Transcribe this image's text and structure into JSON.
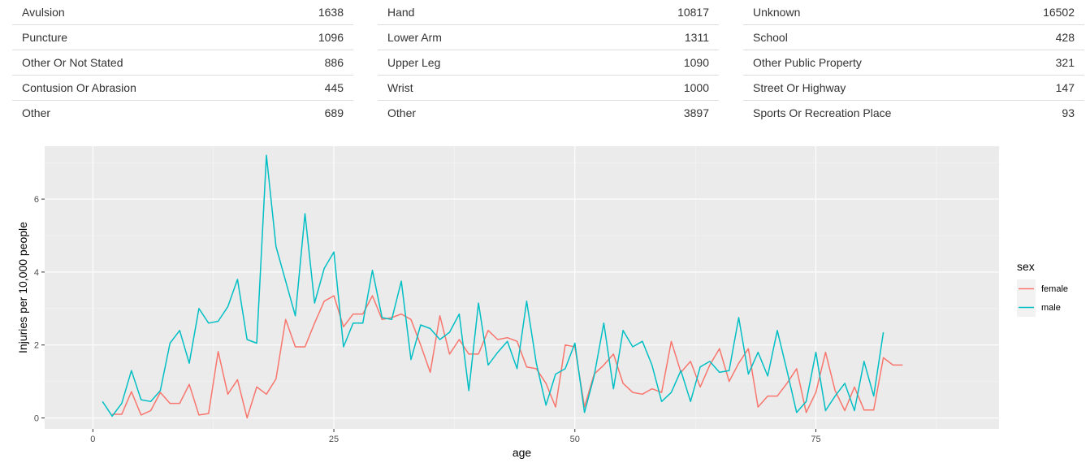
{
  "tables": [
    {
      "rows": [
        {
          "label": "Avulsion",
          "value": "1638"
        },
        {
          "label": "Puncture",
          "value": "1096"
        },
        {
          "label": "Other Or Not Stated",
          "value": "886"
        },
        {
          "label": "Contusion Or Abrasion",
          "value": "445"
        },
        {
          "label": "Other",
          "value": "689"
        }
      ]
    },
    {
      "rows": [
        {
          "label": "Hand",
          "value": "10817"
        },
        {
          "label": "Lower Arm",
          "value": "1311"
        },
        {
          "label": "Upper Leg",
          "value": "1090"
        },
        {
          "label": "Wrist",
          "value": "1000"
        },
        {
          "label": "Other",
          "value": "3897"
        }
      ]
    },
    {
      "rows": [
        {
          "label": "Unknown",
          "value": "16502"
        },
        {
          "label": "School",
          "value": "428"
        },
        {
          "label": "Other Public Property",
          "value": "321"
        },
        {
          "label": "Street Or Highway",
          "value": "147"
        },
        {
          "label": "Sports Or Recreation Place",
          "value": "93"
        }
      ]
    }
  ],
  "chart_data": {
    "type": "line",
    "xlabel": "age",
    "ylabel": "Injuries per 10,000 people",
    "xlim": [
      -5,
      94
    ],
    "ylim": [
      -0.3,
      7.45
    ],
    "x_ticks": [
      0,
      25,
      50,
      75
    ],
    "y_ticks": [
      0,
      2,
      4,
      6
    ],
    "grid": true,
    "legend_title": "sex",
    "legend_position": "right",
    "series": [
      {
        "name": "female",
        "color": "#F8766D",
        "x": [
          2,
          3,
          4,
          5,
          6,
          7,
          8,
          9,
          10,
          11,
          12,
          13,
          14,
          15,
          16,
          17,
          18,
          19,
          20,
          21,
          22,
          23,
          24,
          25,
          26,
          27,
          28,
          29,
          30,
          31,
          32,
          33,
          34,
          35,
          36,
          37,
          38,
          39,
          40,
          41,
          42,
          43,
          44,
          45,
          46,
          47,
          48,
          49,
          50,
          51,
          52,
          53,
          54,
          55,
          56,
          57,
          58,
          59,
          60,
          61,
          62,
          63,
          64,
          65,
          66,
          67,
          68,
          69,
          70,
          71,
          72,
          73,
          74,
          75,
          76,
          77,
          78,
          79,
          80,
          81,
          82,
          83,
          84
        ],
        "y": [
          0.1,
          0.1,
          0.72,
          0.08,
          0.2,
          0.7,
          0.4,
          0.4,
          0.92,
          0.08,
          0.12,
          1.82,
          0.65,
          1.05,
          0.0,
          0.85,
          0.65,
          1.07,
          2.7,
          1.95,
          1.95,
          2.6,
          3.2,
          3.35,
          2.5,
          2.85,
          2.85,
          3.35,
          2.7,
          2.75,
          2.85,
          2.7,
          2.0,
          1.25,
          2.8,
          1.75,
          2.15,
          1.75,
          1.75,
          2.4,
          2.15,
          2.2,
          2.1,
          1.4,
          1.35,
          0.95,
          0.3,
          2.0,
          1.95,
          0.3,
          1.2,
          1.45,
          1.75,
          0.95,
          0.7,
          0.65,
          0.8,
          0.7,
          2.1,
          1.25,
          1.55,
          0.85,
          1.45,
          1.9,
          1.0,
          1.5,
          1.9,
          0.3,
          0.6,
          0.6,
          0.95,
          1.35,
          0.15,
          0.7,
          1.8,
          0.75,
          0.2,
          0.85,
          0.22,
          0.22,
          1.65,
          1.45,
          1.45
        ]
      },
      {
        "name": "male",
        "color": "#00BFC4",
        "x": [
          1,
          2,
          3,
          4,
          5,
          6,
          7,
          8,
          9,
          10,
          11,
          12,
          13,
          14,
          15,
          16,
          17,
          18,
          19,
          20,
          21,
          22,
          23,
          24,
          25,
          26,
          27,
          28,
          29,
          30,
          31,
          32,
          33,
          34,
          35,
          36,
          37,
          38,
          39,
          40,
          41,
          42,
          43,
          44,
          45,
          46,
          47,
          48,
          49,
          50,
          51,
          52,
          53,
          54,
          55,
          56,
          57,
          58,
          59,
          60,
          61,
          62,
          63,
          64,
          65,
          66,
          67,
          68,
          69,
          70,
          71,
          72,
          73,
          74,
          75,
          76,
          77,
          78,
          79,
          80,
          81,
          82
        ],
        "y": [
          0.45,
          0.05,
          0.4,
          1.3,
          0.5,
          0.45,
          0.75,
          2.05,
          2.4,
          1.5,
          3.0,
          2.6,
          2.65,
          3.05,
          3.8,
          2.15,
          2.05,
          7.2,
          4.7,
          3.75,
          2.8,
          5.6,
          3.15,
          4.1,
          4.55,
          1.95,
          2.6,
          2.6,
          4.05,
          2.75,
          2.7,
          3.75,
          1.6,
          2.55,
          2.45,
          2.15,
          2.35,
          2.85,
          0.75,
          3.15,
          1.45,
          1.8,
          2.1,
          1.35,
          3.2,
          1.5,
          0.35,
          1.2,
          1.35,
          2.05,
          0.15,
          1.15,
          2.6,
          0.8,
          2.4,
          1.95,
          2.1,
          1.45,
          0.45,
          0.7,
          1.3,
          0.45,
          1.4,
          1.55,
          1.25,
          1.3,
          2.75,
          1.2,
          1.8,
          1.15,
          2.4,
          1.3,
          0.15,
          0.45,
          1.8,
          0.2,
          0.6,
          0.95,
          0.2,
          1.55,
          0.6,
          2.35
        ]
      }
    ]
  }
}
